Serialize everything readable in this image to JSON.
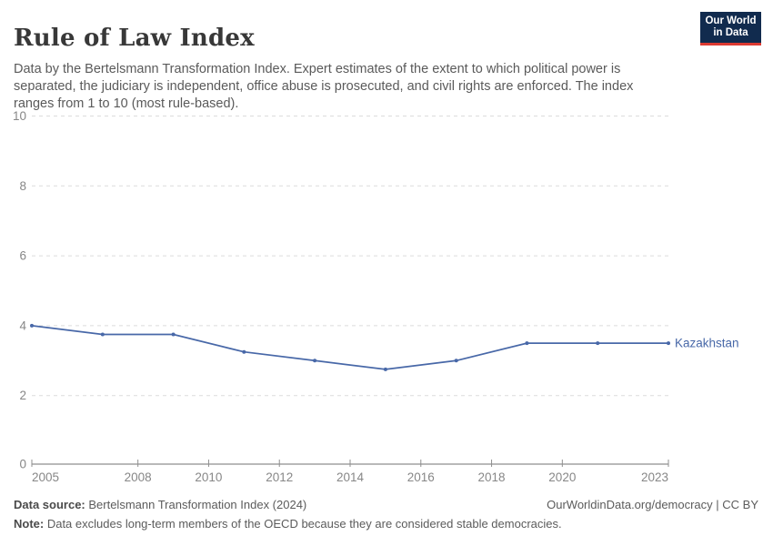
{
  "header": {
    "title": "Rule of Law Index",
    "subtitle": "Data by the Bertelsmann Transformation Index. Expert estimates of the extent to which political power is separated, the judiciary is independent, office abuse is prosecuted, and civil rights are enforced. The index ranges from 1 to 10 (most rule-based).",
    "logo": {
      "line1": "Our World",
      "line2": "in Data",
      "bg_color": "#112B4E",
      "accent_color": "#DC3A32"
    }
  },
  "chart_data": {
    "type": "line",
    "title": "Rule of Law Index",
    "x": [
      2005,
      2007,
      2009,
      2011,
      2013,
      2015,
      2017,
      2019,
      2021,
      2023
    ],
    "series": [
      {
        "name": "Kazakhstan",
        "color": "#4868A8",
        "values": [
          4.0,
          3.75,
          3.75,
          3.25,
          3.0,
          2.75,
          3.0,
          3.5,
          3.5,
          3.5
        ]
      }
    ],
    "xlabel": "",
    "ylabel": "",
    "ylim": [
      0,
      10
    ],
    "yticks": [
      0,
      2,
      4,
      6,
      8,
      10
    ],
    "xticks": [
      2005,
      2008,
      2010,
      2012,
      2014,
      2016,
      2018,
      2020,
      2023
    ],
    "grid": "horizontal-dashed",
    "legend_position": "end-of-line",
    "colors": {
      "gridline": "#dcdcdc",
      "axis_line": "#8f8f8f",
      "axis_text": "#878787"
    }
  },
  "footer": {
    "source_label": "Data source:",
    "source_text": " Bertelsmann Transformation Index (2024)",
    "attribution": "OurWorldinData.org/democracy | CC BY",
    "note_label": "Note:",
    "note_text": " Data excludes long-term members of the OECD because they are considered stable democracies."
  }
}
